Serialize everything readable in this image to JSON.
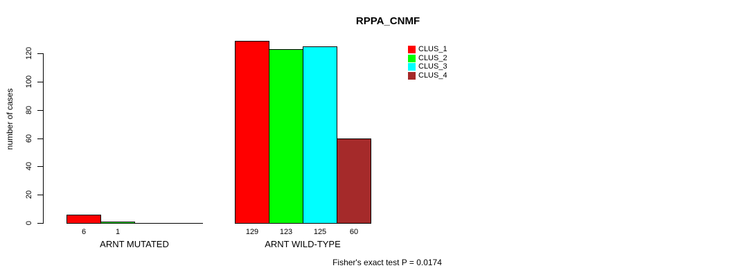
{
  "figure": {
    "background": "#FFFFFF",
    "axis_color": "#000000",
    "text_color": "#000000"
  },
  "chart_data": {
    "type": "bar",
    "title": "RPPA_CNMF",
    "xlabel": "",
    "ylabel": "number of cases",
    "ylim": [
      0,
      120
    ],
    "yticks": [
      0,
      20,
      40,
      60,
      80,
      100,
      120
    ],
    "grid": false,
    "legend_position": "right",
    "categories": [
      "ARNT MUTATED",
      "ARNT WILD-TYPE"
    ],
    "series": [
      {
        "name": "CLUS_1",
        "color": "#FF0000",
        "values": [
          6,
          129
        ]
      },
      {
        "name": "CLUS_2",
        "color": "#00FF00",
        "values": [
          1,
          123
        ]
      },
      {
        "name": "CLUS_3",
        "color": "#00FFFF",
        "values": [
          0,
          125
        ]
      },
      {
        "name": "CLUS_4",
        "color": "#A52A2A",
        "values": [
          0,
          60
        ]
      }
    ],
    "value_labels": [
      [
        "6",
        "1",
        "",
        ""
      ],
      [
        "129",
        "123",
        "125",
        "60"
      ]
    ],
    "annotation": "Fisher's exact test P = 0.0174"
  }
}
